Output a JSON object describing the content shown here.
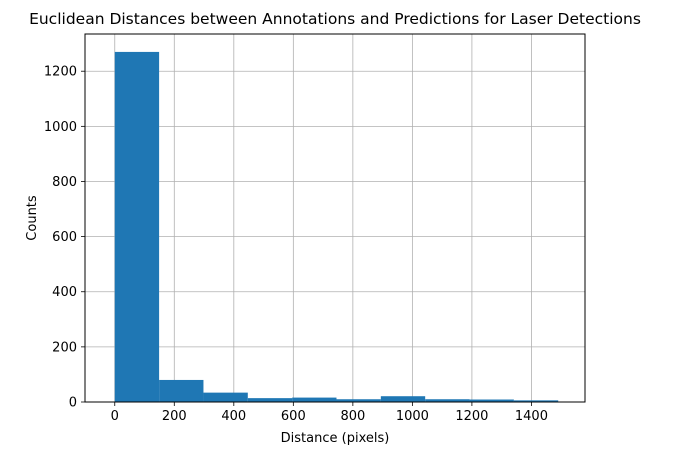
{
  "chart_data": {
    "type": "bar",
    "title": "Euclidean Distances between Annotations and Predictions for Laser Detections",
    "xlabel": "Distance (pixels)",
    "ylabel": "Counts",
    "xlim": [
      -100,
      1580
    ],
    "ylim": [
      0,
      1335
    ],
    "x_ticks": [
      0,
      200,
      400,
      600,
      800,
      1000,
      1200,
      1400
    ],
    "y_ticks": [
      0,
      200,
      400,
      600,
      800,
      1000,
      1200
    ],
    "grid": true,
    "bar_color": "#1f77b4",
    "bins": [
      {
        "start": 0,
        "end": 149,
        "count": 1270
      },
      {
        "start": 149,
        "end": 298,
        "count": 80
      },
      {
        "start": 298,
        "end": 447,
        "count": 34
      },
      {
        "start": 447,
        "end": 596,
        "count": 14
      },
      {
        "start": 596,
        "end": 745,
        "count": 16
      },
      {
        "start": 745,
        "end": 894,
        "count": 10
      },
      {
        "start": 894,
        "end": 1043,
        "count": 21
      },
      {
        "start": 1043,
        "end": 1192,
        "count": 10
      },
      {
        "start": 1192,
        "end": 1341,
        "count": 9
      },
      {
        "start": 1341,
        "end": 1490,
        "count": 6
      }
    ]
  }
}
